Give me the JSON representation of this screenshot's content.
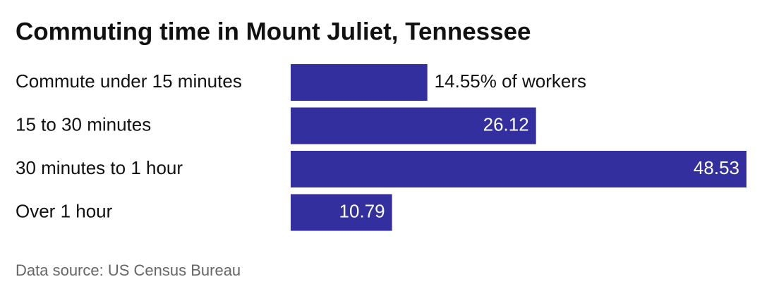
{
  "chart_data": {
    "type": "bar",
    "orientation": "horizontal",
    "title": "Commuting time in Mount Juliet, Tennessee",
    "categories": [
      "Commute under 15 minutes",
      "15 to 30 minutes",
      "30 minutes to 1 hour",
      "Over 1 hour"
    ],
    "values": [
      14.55,
      26.12,
      48.53,
      10.79
    ],
    "value_labels": [
      "14.55% of workers",
      "26.12",
      "48.53",
      "10.79"
    ],
    "color": "#332f9f",
    "source": "Data source: US Census Bureau"
  }
}
